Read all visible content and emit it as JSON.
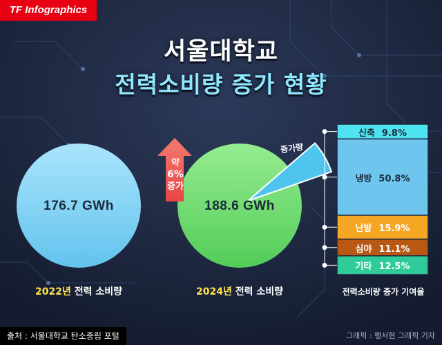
{
  "brand": "TF Infographics",
  "title": {
    "line1": "서울대학교",
    "line2": "전력소비량 증가 현황"
  },
  "chart_data": {
    "type": "pie",
    "unit": "GWh",
    "pies": [
      {
        "year": "2022년",
        "caption_rest": " 전력 소비량",
        "value": 176.7,
        "value_label": "176.7 GWh"
      },
      {
        "year": "2024년",
        "caption_rest": " 전력 소비량",
        "value": 188.6,
        "value_label": "188.6 GWh"
      }
    ],
    "increase": {
      "label_top": "약",
      "label_mid": "6%",
      "label_bottom": "증가",
      "slice_label": "증가량",
      "percent": 6
    },
    "contribution": {
      "caption": "전력소비량 증가 기여율",
      "segments": [
        {
          "name": "신축",
          "value": 9.8,
          "label": "9.8%",
          "color": "#4fe3f2"
        },
        {
          "name": "냉방",
          "value": 50.8,
          "label": "50.8%",
          "color": "#6ec6ee"
        },
        {
          "name": "난방",
          "value": 15.9,
          "label": "15.9%",
          "color": "#f5a623"
        },
        {
          "name": "심야",
          "value": 11.1,
          "label": "11.1%",
          "color": "#b85812"
        },
        {
          "name": "기타",
          "value": 12.5,
          "label": "12.5%",
          "color": "#2fcc99"
        }
      ]
    }
  },
  "colors": {
    "pie_2022": "#8cd8f5",
    "pie_2024": "#7be07b",
    "arrow": "#f05a5a",
    "slice": "#4fc4ef",
    "brand": "#e60012"
  },
  "footer": {
    "source": "출처 : 서울대학교 탄소중립 포털",
    "credit": "그래픽 : 팽서현 그래픽 기자"
  }
}
